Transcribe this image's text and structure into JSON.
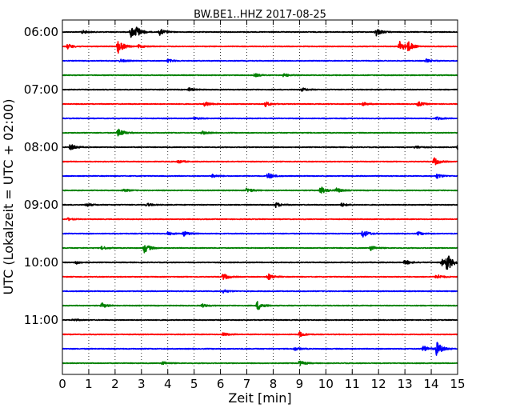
{
  "chart_data": {
    "type": "line",
    "title": "BW.BE1..HHZ 2017-08-25",
    "xlabel": "Zeit  [min]",
    "ylabel": "UTC (Lokalzeit = UTC + 02:00)",
    "xlim": [
      0,
      15
    ],
    "x_ticks": [
      "0",
      "1",
      "2",
      "3",
      "4",
      "5",
      "6",
      "7",
      "8",
      "9",
      "10",
      "11",
      "12",
      "13",
      "14",
      "15"
    ],
    "y_ticks": [
      "06:00",
      "07:00",
      "08:00",
      "09:00",
      "10:00",
      "11:00"
    ],
    "grid": "vertical dotted",
    "colors": {
      "black": "#000000",
      "red": "#ff0000",
      "blue": "#0000ff",
      "green": "#008000"
    },
    "traces": [
      {
        "start": "06:00",
        "color": "black",
        "events": [
          [
            2.6,
            7
          ],
          [
            2.8,
            5
          ],
          [
            3.7,
            4
          ],
          [
            11.9,
            5
          ],
          [
            0.75,
            2
          ]
        ]
      },
      {
        "start": "06:15",
        "color": "red",
        "events": [
          [
            2.1,
            9
          ],
          [
            0.2,
            3
          ],
          [
            12.8,
            7
          ],
          [
            13.1,
            6
          ],
          [
            2.9,
            2
          ]
        ]
      },
      {
        "start": "06:30",
        "color": "blue",
        "events": [
          [
            2.2,
            2
          ],
          [
            4.0,
            2
          ],
          [
            13.8,
            2
          ]
        ]
      },
      {
        "start": "06:45",
        "color": "green",
        "events": [
          [
            7.3,
            2
          ],
          [
            8.4,
            2
          ]
        ]
      },
      {
        "start": "07:00",
        "color": "black",
        "events": [
          [
            4.8,
            2
          ],
          [
            9.1,
            2
          ]
        ]
      },
      {
        "start": "07:15",
        "color": "red",
        "events": [
          [
            5.4,
            3
          ],
          [
            7.7,
            3
          ],
          [
            11.4,
            2
          ],
          [
            13.5,
            3
          ]
        ]
      },
      {
        "start": "07:30",
        "color": "blue",
        "events": [
          [
            14.2,
            2
          ],
          [
            5.0,
            1.5
          ]
        ]
      },
      {
        "start": "07:45",
        "color": "green",
        "events": [
          [
            2.1,
            6
          ],
          [
            5.3,
            2
          ]
        ]
      },
      {
        "start": "08:00",
        "color": "black",
        "events": [
          [
            0.3,
            4
          ],
          [
            13.4,
            2
          ],
          [
            15.0,
            3
          ]
        ]
      },
      {
        "start": "08:15",
        "color": "red",
        "events": [
          [
            14.1,
            5
          ],
          [
            4.4,
            2
          ]
        ]
      },
      {
        "start": "08:30",
        "color": "blue",
        "events": [
          [
            7.8,
            4
          ],
          [
            14.2,
            3
          ],
          [
            5.7,
            2
          ]
        ]
      },
      {
        "start": "08:45",
        "color": "green",
        "events": [
          [
            7.0,
            3
          ],
          [
            9.8,
            5
          ],
          [
            10.4,
            3
          ],
          [
            2.3,
            2
          ]
        ]
      },
      {
        "start": "09:00",
        "color": "black",
        "events": [
          [
            0.9,
            2
          ],
          [
            3.2,
            2
          ],
          [
            8.1,
            3
          ],
          [
            10.6,
            2
          ]
        ]
      },
      {
        "start": "09:15",
        "color": "red",
        "events": [
          [
            0.2,
            1.5
          ]
        ]
      },
      {
        "start": "09:30",
        "color": "blue",
        "events": [
          [
            4.6,
            3
          ],
          [
            11.4,
            5
          ],
          [
            13.5,
            2
          ],
          [
            4.0,
            2
          ]
        ]
      },
      {
        "start": "09:45",
        "color": "green",
        "events": [
          [
            3.1,
            6
          ],
          [
            11.7,
            3
          ],
          [
            1.5,
            2
          ]
        ]
      },
      {
        "start": "10:00",
        "color": "black",
        "events": [
          [
            14.6,
            10
          ],
          [
            13.0,
            3
          ],
          [
            14.4,
            4
          ],
          [
            0.5,
            2
          ]
        ]
      },
      {
        "start": "10:15",
        "color": "red",
        "events": [
          [
            6.1,
            4
          ],
          [
            7.8,
            4
          ],
          [
            14.2,
            3
          ]
        ]
      },
      {
        "start": "10:30",
        "color": "blue",
        "events": [
          [
            6.1,
            2
          ]
        ]
      },
      {
        "start": "10:45",
        "color": "green",
        "events": [
          [
            7.4,
            6
          ],
          [
            1.5,
            3
          ],
          [
            5.3,
            2
          ]
        ]
      },
      {
        "start": "11:00",
        "color": "black",
        "events": [
          [
            0.4,
            1.5
          ]
        ]
      },
      {
        "start": "11:15",
        "color": "red",
        "events": [
          [
            9.0,
            3
          ],
          [
            6.1,
            2
          ]
        ]
      },
      {
        "start": "11:30",
        "color": "blue",
        "events": [
          [
            14.2,
            9
          ],
          [
            13.7,
            4
          ],
          [
            8.8,
            2
          ]
        ]
      },
      {
        "start": "11:45",
        "color": "green",
        "events": [
          [
            9.0,
            3
          ],
          [
            3.8,
            2
          ]
        ]
      }
    ]
  }
}
